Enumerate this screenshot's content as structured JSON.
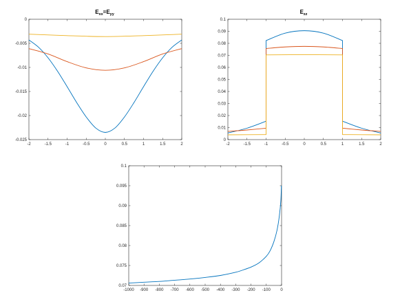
{
  "colors": {
    "series1": "#0072BD",
    "series2": "#D95319",
    "series3": "#EDB120",
    "axis": "#262626",
    "background": "#ffffff"
  },
  "chart_data": [
    {
      "type": "line",
      "title": "E",
      "title_sub_1": "xx",
      "title_eq": "=E",
      "title_sub_2": "yy",
      "xlim": [
        -2,
        2
      ],
      "ylim": [
        -0.025,
        0
      ],
      "x_ticks": [
        "-2",
        "-1.5",
        "-1",
        "-0.5",
        "0",
        "0.5",
        "1",
        "1.5",
        "2"
      ],
      "y_ticks": [
        "0",
        "-0.005",
        "-0.01",
        "-0.015",
        "-0.02",
        "-0.025"
      ],
      "grid": false,
      "series": [
        {
          "color": "#0072BD",
          "x": [
            -2,
            -1.75,
            -1.5,
            -1.25,
            -1,
            -0.75,
            -0.5,
            -0.25,
            0,
            0.25,
            0.5,
            0.75,
            1,
            1.25,
            1.5,
            1.75,
            2
          ],
          "y": [
            -0.0043,
            -0.0058,
            -0.008,
            -0.0108,
            -0.014,
            -0.0173,
            -0.0203,
            -0.0226,
            -0.0235,
            -0.0226,
            -0.0203,
            -0.0173,
            -0.014,
            -0.0108,
            -0.008,
            -0.0058,
            -0.0043
          ]
        },
        {
          "color": "#D95319",
          "x": [
            -2,
            -1.5,
            -1,
            -0.5,
            0,
            0.5,
            1,
            1.5,
            2
          ],
          "y": [
            -0.0061,
            -0.0072,
            -0.0088,
            -0.0101,
            -0.0106,
            -0.0101,
            -0.0088,
            -0.0072,
            -0.0061
          ]
        },
        {
          "color": "#EDB120",
          "x": [
            -2,
            -1,
            0,
            1,
            2
          ],
          "y": [
            -0.0031,
            -0.0034,
            -0.0036,
            -0.0034,
            -0.0031
          ]
        }
      ]
    },
    {
      "type": "line",
      "title": "E",
      "title_sub_1": "zz",
      "xlim": [
        -2,
        2
      ],
      "ylim": [
        0,
        0.1
      ],
      "x_ticks": [
        "-2",
        "-1.5",
        "-1",
        "-0.5",
        "0",
        "0.5",
        "1",
        "1.5",
        "2"
      ],
      "y_ticks": [
        "0.1",
        "0.09",
        "0.08",
        "0.07",
        "0.06",
        "0.05",
        "0.04",
        "0.03",
        "0.02",
        "0.01",
        "0"
      ],
      "grid": false,
      "series": [
        {
          "color": "#0072BD",
          "x": [
            -2,
            -1.5,
            -1,
            -1,
            -0.5,
            0,
            0.5,
            1,
            1,
            1.5,
            2
          ],
          "y": [
            0.0055,
            0.0095,
            0.0153,
            0.0823,
            0.0885,
            0.0905,
            0.0885,
            0.0823,
            0.0153,
            0.0095,
            0.0055
          ]
        },
        {
          "color": "#D95319",
          "x": [
            -2,
            -1.5,
            -1,
            -1,
            -0.5,
            0,
            0.5,
            1,
            1,
            1.5,
            2
          ],
          "y": [
            0.0068,
            0.008,
            0.0095,
            0.0757,
            0.077,
            0.0775,
            0.077,
            0.0757,
            0.0095,
            0.008,
            0.0068
          ]
        },
        {
          "color": "#EDB120",
          "x": [
            -2,
            -1,
            -1,
            0,
            1,
            1,
            2
          ],
          "y": [
            0.004,
            0.0042,
            0.0704,
            0.0706,
            0.0704,
            0.0042,
            0.004
          ]
        }
      ]
    },
    {
      "type": "line",
      "title": "",
      "xlim": [
        -1000,
        0
      ],
      "ylim": [
        0.07,
        0.1
      ],
      "x_ticks": [
        "-1000",
        "-900",
        "-800",
        "-700",
        "-600",
        "-500",
        "-400",
        "-300",
        "-200",
        "-100",
        "0"
      ],
      "y_ticks": [
        "0.1",
        "0.095",
        "0.09",
        "0.085",
        "0.08",
        "0.075",
        "0.07"
      ],
      "grid": false,
      "series": [
        {
          "color": "#0072BD",
          "x": [
            -1000,
            -900,
            -800,
            -700,
            -600,
            -500,
            -400,
            -300,
            -250,
            -200,
            -150,
            -100,
            -75,
            -50,
            -30,
            -15,
            -5,
            -1
          ],
          "y": [
            0.0706,
            0.0708,
            0.071,
            0.0713,
            0.0716,
            0.072,
            0.0725,
            0.0733,
            0.0739,
            0.0746,
            0.0756,
            0.0773,
            0.0787,
            0.081,
            0.0838,
            0.0873,
            0.0912,
            0.095
          ]
        }
      ]
    }
  ]
}
